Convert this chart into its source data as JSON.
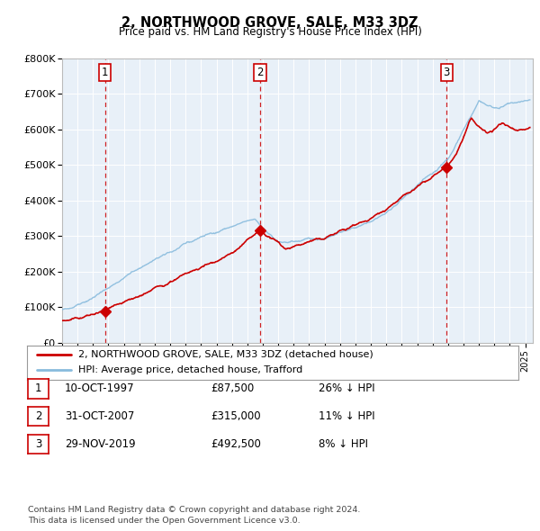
{
  "title": "2, NORTHWOOD GROVE, SALE, M33 3DZ",
  "subtitle": "Price paid vs. HM Land Registry's House Price Index (HPI)",
  "legend_line1": "2, NORTHWOOD GROVE, SALE, M33 3DZ (detached house)",
  "legend_line2": "HPI: Average price, detached house, Trafford",
  "sale_color": "#cc0000",
  "hpi_color": "#88bbdd",
  "plot_bg": "#e8f0f8",
  "ylim": [
    0,
    800000
  ],
  "yticks": [
    0,
    100000,
    200000,
    300000,
    400000,
    500000,
    600000,
    700000,
    800000
  ],
  "ytick_labels": [
    "£0",
    "£100K",
    "£200K",
    "£300K",
    "£400K",
    "£500K",
    "£600K",
    "£700K",
    "£800K"
  ],
  "sale_points": [
    {
      "year": 1997.78,
      "price": 87500,
      "label": "1"
    },
    {
      "year": 2007.83,
      "price": 315000,
      "label": "2"
    },
    {
      "year": 2019.91,
      "price": 492500,
      "label": "3"
    }
  ],
  "table_rows": [
    {
      "num": "1",
      "date": "10-OCT-1997",
      "price": "£87,500",
      "hpi": "26% ↓ HPI"
    },
    {
      "num": "2",
      "date": "31-OCT-2007",
      "price": "£315,000",
      "hpi": "11% ↓ HPI"
    },
    {
      "num": "3",
      "date": "29-NOV-2019",
      "price": "£492,500",
      "hpi": "8% ↓ HPI"
    }
  ],
  "footer": "Contains HM Land Registry data © Crown copyright and database right 2024.\nThis data is licensed under the Open Government Licence v3.0.",
  "xmin": 1995.0,
  "xmax": 2025.5
}
